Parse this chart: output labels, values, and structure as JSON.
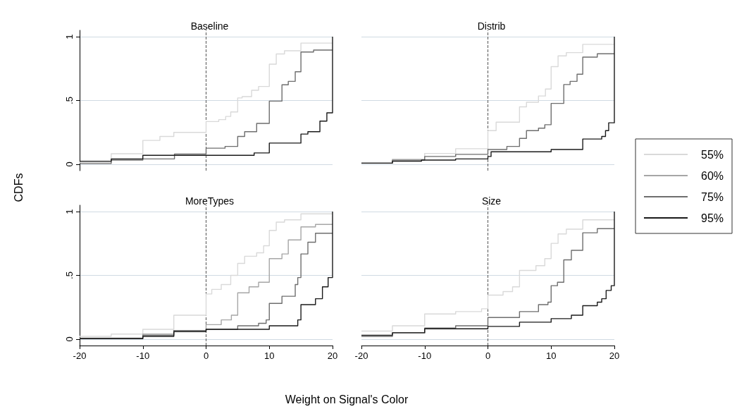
{
  "chart_data": [
    {
      "type": "line",
      "title": "Baseline",
      "ylabel": "CDFs",
      "xlim": [
        -20,
        20
      ],
      "xticks": [
        -20,
        -10,
        0,
        10,
        20
      ],
      "ylim": [
        -0.05,
        1.05
      ],
      "yticks": [
        0,
        {
          "value": 0.5,
          "label": ".5"
        },
        1
      ],
      "grid": "y",
      "tick_labels": "y",
      "ref_lines": [
        {
          "axis": "x",
          "value": 0,
          "line_style": "dashed",
          "color": "#555555"
        }
      ],
      "series": [
        {
          "color": "#d9d9d9",
          "x": [
            -20,
            -15,
            -15,
            -10,
            -10,
            -7.3,
            -7.3,
            -5.1,
            -5.1,
            0,
            0,
            2,
            2,
            3.1,
            3.1,
            3.9,
            3.9,
            5,
            5,
            5.7,
            5.7,
            7.2,
            7.2,
            8.3,
            8.3,
            10,
            10,
            11.1,
            11.1,
            12.4,
            12.4,
            15,
            15,
            20
          ],
          "values": [
            0.015,
            0.015,
            0.083,
            0.083,
            0.187,
            0.187,
            0.218,
            0.218,
            0.25,
            0.25,
            0.335,
            0.335,
            0.35,
            0.35,
            0.375,
            0.375,
            0.41,
            0.41,
            0.52,
            0.52,
            0.53,
            0.53,
            0.58,
            0.58,
            0.61,
            0.61,
            0.785,
            0.785,
            0.865,
            0.865,
            0.89,
            0.89,
            0.95,
            0.95
          ]
        },
        {
          "color": "#6e6e6e",
          "x": [
            -20,
            -15,
            -15,
            -10,
            -10,
            -5,
            -5,
            0,
            0,
            3,
            3,
            5,
            5,
            6.1,
            6.1,
            8,
            8,
            10,
            10,
            12,
            12,
            13,
            13,
            14.1,
            14.1,
            15,
            15,
            17,
            17,
            20
          ],
          "values": [
            0.006,
            0.006,
            0.033,
            0.033,
            0.042,
            0.042,
            0.08,
            0.08,
            0.126,
            0.126,
            0.14,
            0.14,
            0.218,
            0.218,
            0.255,
            0.255,
            0.32,
            0.32,
            0.495,
            0.495,
            0.623,
            0.623,
            0.65,
            0.65,
            0.725,
            0.725,
            0.88,
            0.88,
            0.895,
            0.895
          ]
        },
        {
          "color": "#1a1a1a",
          "x": [
            -20,
            -15,
            -15,
            -10,
            -10,
            7.6,
            7.6,
            10,
            10,
            15,
            15,
            16.1,
            16.1,
            18,
            18,
            19.1,
            19.1,
            20,
            20
          ],
          "values": [
            0.024,
            0.024,
            0.042,
            0.042,
            0.07,
            0.07,
            0.089,
            0.089,
            0.166,
            0.166,
            0.237,
            0.237,
            0.255,
            0.255,
            0.338,
            0.338,
            0.403,
            0.403,
            1
          ]
        }
      ]
    },
    {
      "type": "line",
      "title": "Distrib",
      "xlim": [
        -20,
        20
      ],
      "xticks": [
        -20,
        -10,
        0,
        10,
        20
      ],
      "ylim": [
        -0.05,
        1.05
      ],
      "yticks": [
        0,
        0.5,
        1
      ],
      "grid": "y",
      "tick_labels": false,
      "ref_lines": [
        {
          "axis": "x",
          "value": 0,
          "line_style": "dashed",
          "color": "#555555"
        }
      ],
      "series": [
        {
          "color": "#d9d9d9",
          "x": [
            -20,
            -15.1,
            -15.1,
            -10,
            -10,
            -5.1,
            -5.1,
            0,
            0,
            1.3,
            1.3,
            5,
            5,
            6.1,
            6.1,
            8,
            8,
            9.1,
            9.1,
            10,
            10,
            11.1,
            11.1,
            12.4,
            12.4,
            15,
            15,
            20
          ],
          "values": [
            0.009,
            0.009,
            0.042,
            0.042,
            0.085,
            0.085,
            0.122,
            0.122,
            0.264,
            0.264,
            0.33,
            0.33,
            0.45,
            0.45,
            0.486,
            0.486,
            0.535,
            0.535,
            0.59,
            0.59,
            0.765,
            0.765,
            0.85,
            0.85,
            0.875,
            0.875,
            0.94,
            0.94
          ]
        },
        {
          "color": "#6e6e6e",
          "x": [
            -20,
            -15.1,
            -15.1,
            -10,
            -10,
            -5.1,
            -5.1,
            0,
            0,
            3,
            3,
            5,
            5,
            6.1,
            6.1,
            8,
            8,
            9,
            9,
            10,
            10,
            12,
            12,
            13,
            13,
            14.1,
            14.1,
            15,
            15,
            17.3,
            17.3,
            20
          ],
          "values": [
            0.009,
            0.009,
            0.033,
            0.033,
            0.061,
            0.061,
            0.078,
            0.078,
            0.116,
            0.116,
            0.14,
            0.14,
            0.203,
            0.203,
            0.264,
            0.264,
            0.283,
            0.283,
            0.31,
            0.31,
            0.477,
            0.477,
            0.625,
            0.625,
            0.65,
            0.65,
            0.706,
            0.706,
            0.84,
            0.84,
            0.866,
            0.866
          ]
        },
        {
          "color": "#1a1a1a",
          "x": [
            -20,
            -15.1,
            -15.1,
            -10.5,
            -10.5,
            -5.1,
            -5.1,
            0,
            0,
            0.5,
            0.5,
            10,
            10,
            15,
            15,
            18,
            18,
            18.6,
            18.6,
            19.1,
            19.1,
            20,
            20
          ],
          "values": [
            0.009,
            0.009,
            0.024,
            0.024,
            0.033,
            0.033,
            0.042,
            0.042,
            0.061,
            0.061,
            0.098,
            0.098,
            0.116,
            0.116,
            0.198,
            0.198,
            0.218,
            0.218,
            0.264,
            0.264,
            0.325,
            0.325,
            1
          ]
        }
      ]
    },
    {
      "type": "line",
      "title": "MoreTypes",
      "xlim": [
        -20,
        20
      ],
      "xticks": [
        -20,
        -10,
        0,
        10,
        20
      ],
      "ylim": [
        -0.05,
        1.05
      ],
      "yticks": [
        0,
        {
          "value": 0.5,
          "label": ".5"
        },
        1
      ],
      "grid": "y",
      "legend": "right",
      "ref_lines": [
        {
          "axis": "x",
          "value": 0,
          "line_style": "dashed",
          "color": "#555555"
        }
      ],
      "series": [
        {
          "name": "55%",
          "color": "#d9d9d9",
          "x": [
            -20,
            -15,
            -15,
            -10,
            -10,
            -5.1,
            -5.1,
            0,
            0,
            0.9,
            0.9,
            2.4,
            2.4,
            3.9,
            3.9,
            5,
            5,
            6.1,
            6.1,
            8,
            8,
            9.1,
            9.1,
            10,
            10,
            11.1,
            11.1,
            12.4,
            12.4,
            15,
            15,
            20
          ],
          "values": [
            0.022,
            0.022,
            0.04,
            0.04,
            0.077,
            0.077,
            0.188,
            0.188,
            0.354,
            0.354,
            0.39,
            0.39,
            0.428,
            0.428,
            0.5,
            0.5,
            0.594,
            0.594,
            0.65,
            0.65,
            0.677,
            0.677,
            0.732,
            0.732,
            0.852,
            0.852,
            0.917,
            0.917,
            0.935,
            0.935,
            0.982,
            0.982
          ]
        },
        {
          "name": "60%",
          "color": "#a6a6a6",
          "x": [
            -20,
            -10,
            -10,
            -5.1,
            -5.1,
            0,
            0,
            2.4,
            2.4,
            4,
            4,
            5,
            5,
            6.8,
            6.8,
            8.3,
            8.3,
            10,
            10,
            12,
            12,
            13,
            13,
            15,
            15,
            17.3,
            17.3,
            20
          ],
          "values": [
            0.009,
            0.009,
            0.04,
            0.04,
            0.068,
            0.068,
            0.114,
            0.114,
            0.151,
            0.151,
            0.188,
            0.188,
            0.363,
            0.363,
            0.41,
            0.41,
            0.446,
            0.446,
            0.631,
            0.631,
            0.668,
            0.668,
            0.778,
            0.778,
            0.88,
            0.88,
            0.899,
            0.899
          ]
        },
        {
          "name": "75%",
          "color": "#6e6e6e",
          "x": [
            -20,
            -10,
            -10,
            -5.1,
            -5.1,
            0,
            0,
            5,
            5,
            8.3,
            8.3,
            9.5,
            9.5,
            10,
            10,
            12,
            12,
            14.1,
            14.1,
            14.5,
            14.5,
            15,
            15,
            16.1,
            16.1,
            17.3,
            17.3,
            20
          ],
          "values": [
            0.007,
            0.007,
            0.031,
            0.031,
            0.068,
            0.068,
            0.077,
            0.077,
            0.105,
            0.105,
            0.124,
            0.124,
            0.151,
            0.151,
            0.28,
            0.28,
            0.336,
            0.336,
            0.428,
            0.428,
            0.483,
            0.483,
            0.668,
            0.668,
            0.76,
            0.76,
            0.83,
            0.83
          ]
        },
        {
          "name": "95%",
          "color": "#1a1a1a",
          "x": [
            -20,
            -10,
            -10,
            -5.1,
            -5.1,
            0,
            0,
            10,
            10,
            14.5,
            14.5,
            15,
            15,
            17.3,
            17.3,
            18.4,
            18.4,
            19.3,
            19.3,
            20,
            20
          ],
          "values": [
            0.004,
            0.004,
            0.022,
            0.022,
            0.059,
            0.059,
            0.077,
            0.077,
            0.105,
            0.105,
            0.151,
            0.151,
            0.271,
            0.271,
            0.317,
            0.317,
            0.41,
            0.41,
            0.483,
            0.483,
            1
          ]
        }
      ]
    },
    {
      "type": "line",
      "title": "Size",
      "xlabel": "Weight on Signal's Color",
      "xlim": [
        -20,
        20
      ],
      "xticks": [
        -20,
        -10,
        0,
        10,
        20
      ],
      "ylim": [
        -0.05,
        1.05
      ],
      "yticks": [
        0,
        0.5,
        1
      ],
      "grid": "y",
      "tick_labels": "x",
      "ref_lines": [
        {
          "axis": "x",
          "value": 0,
          "line_style": "dashed",
          "color": "#555555"
        }
      ],
      "series": [
        {
          "color": "#d9d9d9",
          "x": [
            -20,
            -15.1,
            -15.1,
            -10,
            -10,
            -5.1,
            -5.1,
            -1,
            -1,
            0,
            0,
            2.4,
            2.4,
            3.9,
            3.9,
            5,
            5,
            7.6,
            7.6,
            9,
            9,
            10,
            10,
            11.1,
            11.1,
            12.4,
            12.4,
            15,
            15,
            20
          ],
          "values": [
            0.063,
            0.063,
            0.105,
            0.105,
            0.197,
            0.197,
            0.216,
            0.216,
            0.238,
            0.238,
            0.345,
            0.345,
            0.373,
            0.373,
            0.41,
            0.41,
            0.539,
            0.539,
            0.576,
            0.576,
            0.631,
            0.631,
            0.751,
            0.751,
            0.825,
            0.825,
            0.862,
            0.862,
            0.935,
            0.935
          ]
        },
        {
          "color": "#6e6e6e",
          "x": [
            -20,
            -15.1,
            -15.1,
            -10,
            -10,
            -5.1,
            -5.1,
            0,
            0,
            5,
            5,
            8,
            8,
            9.5,
            9.5,
            10,
            10,
            11,
            11,
            12,
            12,
            13.2,
            13.2,
            15,
            15,
            17.3,
            17.3,
            20
          ],
          "values": [
            0.022,
            0.022,
            0.05,
            0.05,
            0.087,
            0.087,
            0.105,
            0.105,
            0.17,
            0.17,
            0.216,
            0.216,
            0.271,
            0.271,
            0.29,
            0.29,
            0.419,
            0.419,
            0.446,
            0.446,
            0.622,
            0.622,
            0.696,
            0.696,
            0.834,
            0.834,
            0.866,
            0.866
          ]
        },
        {
          "color": "#1a1a1a",
          "x": [
            -20,
            -15.1,
            -15.1,
            -10,
            -10,
            0,
            0,
            5,
            5,
            10,
            10,
            13.2,
            13.2,
            15,
            15,
            17.3,
            17.3,
            18,
            18,
            18.7,
            18.7,
            19.5,
            19.5,
            20,
            20
          ],
          "values": [
            0.031,
            0.031,
            0.05,
            0.05,
            0.081,
            0.081,
            0.1,
            0.1,
            0.133,
            0.133,
            0.161,
            0.161,
            0.188,
            0.188,
            0.262,
            0.262,
            0.29,
            0.29,
            0.317,
            0.317,
            0.382,
            0.382,
            0.419,
            0.419,
            1
          ]
        }
      ]
    }
  ]
}
